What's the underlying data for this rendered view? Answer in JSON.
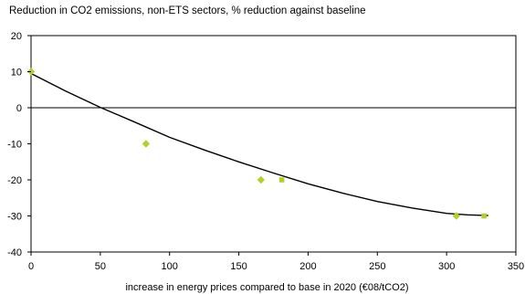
{
  "chart_data": {
    "type": "scatter",
    "title": "Reduction in CO2 emissions, non-ETS sectors, % reduction against baseline",
    "xlabel": "increase in energy prices compared to base  in 2020 (€08/tCO2)",
    "ylabel": "",
    "xlim": [
      0,
      350
    ],
    "ylim": [
      -40,
      20
    ],
    "xticks": [
      0,
      50,
      100,
      150,
      200,
      250,
      300,
      350
    ],
    "yticks": [
      20,
      10,
      0,
      -10,
      -20,
      -30,
      -40
    ],
    "zero_line": true,
    "series": [
      {
        "marker": "diamond",
        "color": "#b5cf2a",
        "points": [
          [
            0,
            10
          ],
          [
            83,
            -10
          ],
          [
            166,
            -20
          ],
          [
            307,
            -30
          ]
        ]
      },
      {
        "marker": "square",
        "color": "#b5cf2a",
        "points": [
          [
            181,
            -20
          ],
          [
            327,
            -30
          ]
        ]
      }
    ],
    "trend_curve": {
      "color": "#000000",
      "points": [
        [
          0,
          9.5
        ],
        [
          25,
          4.6
        ],
        [
          50,
          0.1
        ],
        [
          75,
          -4.0
        ],
        [
          100,
          -8.2
        ],
        [
          125,
          -11.7
        ],
        [
          150,
          -15.0
        ],
        [
          175,
          -18.1
        ],
        [
          200,
          -21.1
        ],
        [
          225,
          -23.7
        ],
        [
          250,
          -26.0
        ],
        [
          275,
          -27.8
        ],
        [
          300,
          -29.3
        ],
        [
          315,
          -29.7
        ],
        [
          330,
          -29.9
        ]
      ]
    }
  }
}
